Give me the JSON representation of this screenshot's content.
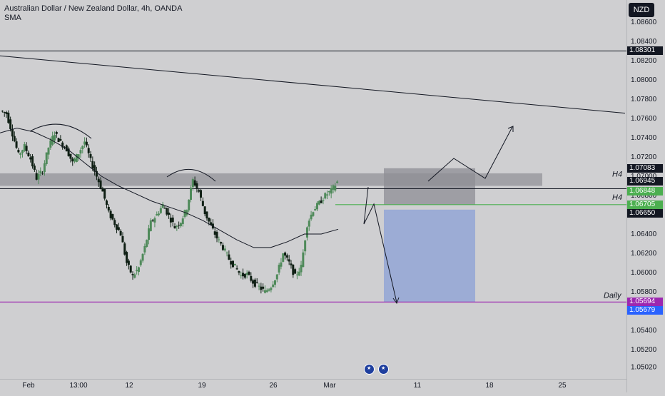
{
  "header": {
    "symbol_line": "Australian Dollar / New Zealand Dollar, 4h, OANDA",
    "indicator": "SMA"
  },
  "currency_button": "NZD",
  "colors": {
    "up": "#4f8a5a",
    "down": "#0f1f14",
    "background": "#cfcfd1",
    "support": "#4caf50",
    "daily": "#9c27b0",
    "target_zone": "#8fa3d6",
    "stop_zone": "#8e8e94",
    "resistance_band": "#9a9aa0"
  },
  "chart_data": {
    "type": "line",
    "title": "Australian Dollar / New Zealand Dollar, 4h, OANDA",
    "xlabel": "",
    "ylabel": "",
    "ylim": [
      1.0492,
      1.088
    ],
    "x_ticks": [
      "Feb",
      "13:00",
      "12",
      "19",
      "26",
      "Mar",
      "11",
      "18",
      "25"
    ],
    "y_ticks": [
      "1.08600",
      "1.08400",
      "1.08200",
      "1.08000",
      "1.07800",
      "1.07600",
      "1.07400",
      "1.07200",
      "1.07000",
      "1.06800",
      "1.06600",
      "1.06400",
      "1.06200",
      "1.06000",
      "1.05800",
      "1.05600",
      "1.05400",
      "1.05200",
      "1.05020"
    ],
    "price_path": [
      1.0768,
      1.0765,
      1.0744,
      1.0722,
      1.0731,
      1.0718,
      1.0698,
      1.0706,
      1.073,
      1.0745,
      1.0735,
      1.0728,
      1.0714,
      1.0724,
      1.0736,
      1.0716,
      1.07,
      1.0684,
      1.0662,
      1.0651,
      1.064,
      1.061,
      1.0596,
      1.0605,
      1.0626,
      1.0652,
      1.066,
      1.067,
      1.0659,
      1.0647,
      1.0653,
      1.0667,
      1.0696,
      1.0684,
      1.0662,
      1.0648,
      1.0636,
      1.0626,
      1.0614,
      1.0606,
      1.0597,
      1.0598,
      1.059,
      1.0585,
      1.058,
      1.0586,
      1.0598,
      1.062,
      1.061,
      1.0596,
      1.0606,
      1.065,
      1.0665,
      1.0672,
      1.068,
      1.0685,
      1.0694
    ],
    "sma_path": [
      1.0745,
      1.075,
      1.0746,
      1.0738,
      1.0728,
      1.0714,
      1.07,
      1.069,
      1.0682,
      1.0674,
      1.0668,
      1.0662,
      1.0654,
      1.0644,
      1.0634,
      1.0626,
      1.0626,
      1.0632,
      1.064,
      1.064,
      1.0645
    ],
    "price_labels": [
      {
        "value": "1.08301",
        "style": "dark"
      },
      {
        "value": "1.07083",
        "style": "dark"
      },
      {
        "value": "1.06945",
        "style": "dark"
      },
      {
        "value": "1.06848",
        "style": "green"
      },
      {
        "value": "1.06705",
        "style": "green"
      },
      {
        "value": "1.06650",
        "style": "dark"
      },
      {
        "value": "1.05694",
        "style": "purple"
      },
      {
        "value": "1.05679",
        "style": "blue"
      }
    ],
    "annotations": [
      {
        "text": "H4",
        "near": 1.06945
      },
      {
        "text": "H4",
        "near": 1.06705
      },
      {
        "text": "Daily",
        "near": 1.05694
      }
    ],
    "lines": {
      "horizontal_resistance": 1.08301,
      "descending_trendline": [
        1.0825,
        1.07655
      ],
      "resistance_band": [
        1.069,
        1.0703
      ],
      "support_h4": 1.06705,
      "daily_support": 1.05694,
      "position_entry": 1.06705,
      "position_stop": 1.07083,
      "position_target": 1.05694
    }
  }
}
